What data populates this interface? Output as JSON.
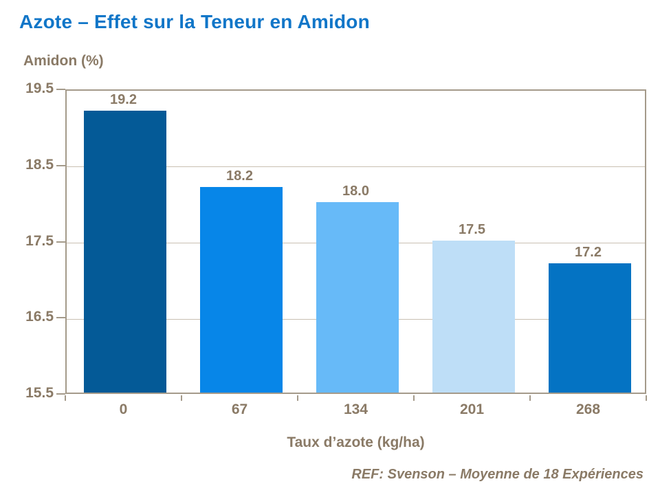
{
  "page": {
    "title": "Azote – Effet sur la Teneur en Amidon",
    "footer": "REF: Svenson – Moyenne de 18 Expériences"
  },
  "chart_data": {
    "type": "bar",
    "title": "Azote – Effet sur la Teneur en Amidon",
    "ylabel": "Amidon (%)",
    "xlabel": "Taux d’azote (kg/ha)",
    "categories": [
      "0",
      "67",
      "134",
      "201",
      "268"
    ],
    "values": [
      19.2,
      18.2,
      18.0,
      17.5,
      17.2
    ],
    "value_labels": [
      "19.2",
      "18.2",
      "18.0",
      "17.5",
      "17.2"
    ],
    "bar_colors": [
      "#045a97",
      "#0786e8",
      "#67baf8",
      "#bedef7",
      "#0473c3"
    ],
    "ylim": [
      15.5,
      19.5
    ],
    "yticks": [
      "15.5",
      "16.5",
      "17.5",
      "18.5",
      "19.5"
    ],
    "grid": true,
    "legend": false,
    "annotation": "REF: Svenson – Moyenne de 18 Expériences",
    "colors": {
      "title_blue": "#1176c8",
      "label_taupe": "#8a7a66",
      "grid_line": "#c9c0b2",
      "axis_line": "#a49a8a"
    }
  }
}
